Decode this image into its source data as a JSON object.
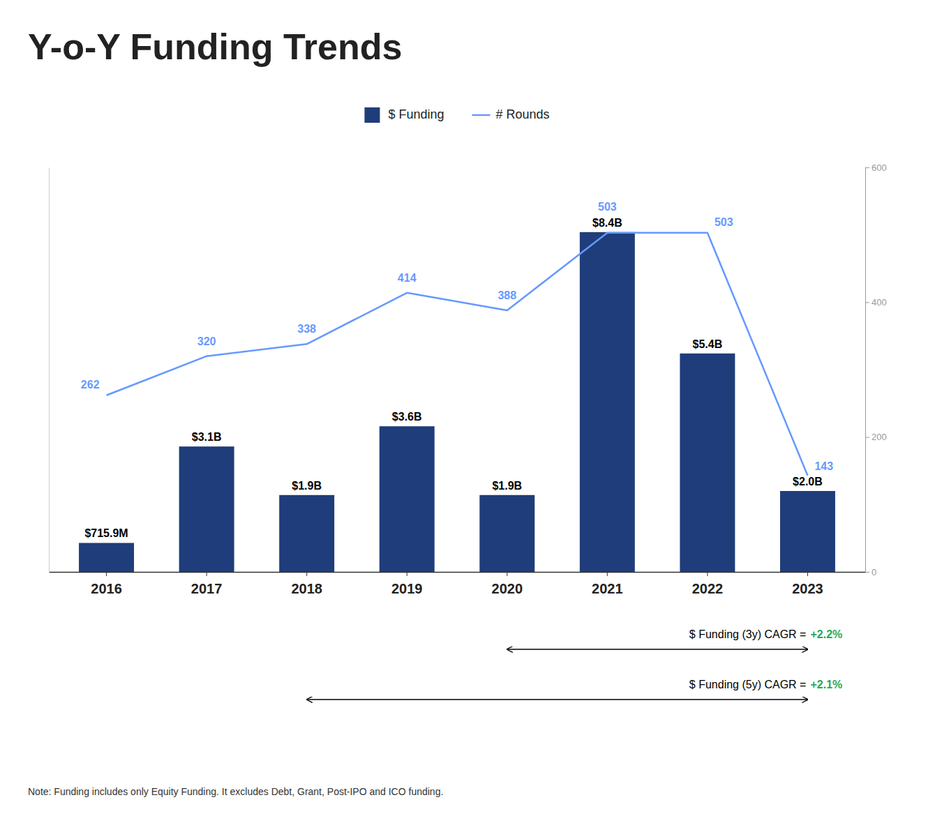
{
  "chart_data": {
    "type": "bar",
    "title": "Y-o-Y Funding Trends",
    "categories": [
      "2016",
      "2017",
      "2018",
      "2019",
      "2020",
      "2021",
      "2022",
      "2023"
    ],
    "series": [
      {
        "name": "$ Funding",
        "type": "bar",
        "color": "#1f3d7a",
        "values": [
          0.7159,
          3.1,
          1.9,
          3.6,
          1.9,
          8.4,
          5.4,
          2.0
        ],
        "value_labels": [
          "$715.9M",
          "$3.1B",
          "$1.9B",
          "$3.6B",
          "$1.9B",
          "$8.4B",
          "$5.4B",
          "$2.0B"
        ]
      },
      {
        "name": "# Rounds",
        "type": "line",
        "color": "#6699ff",
        "axis": "y2",
        "values": [
          262,
          320,
          338,
          414,
          388,
          503,
          503,
          143
        ]
      }
    ],
    "ylim": [
      0,
      10
    ],
    "y2lim": [
      0,
      600
    ],
    "y2ticks": [
      0,
      200,
      400,
      600
    ],
    "data_labels": true,
    "legend": "top",
    "grid": false,
    "annotations": [
      {
        "text": "$ Funding (3y) CAGR = ",
        "emphasis": "+2.2%",
        "color": "#22aa55",
        "from": "2020",
        "to": "2023"
      },
      {
        "text": "$ Funding (5y) CAGR = ",
        "emphasis": "+2.1%",
        "color": "#22aa55",
        "from": "2018",
        "to": "2023"
      },
      {
        "text": "Note: Funding includes only Equity Funding. It excludes Debt, Grant, Post-IPO and ICO funding."
      }
    ]
  }
}
